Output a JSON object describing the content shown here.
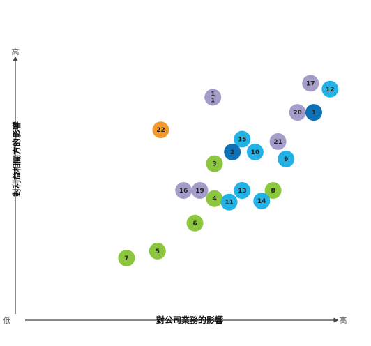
{
  "chart_data": {
    "type": "scatter",
    "title": "",
    "xlabel": "對公司業務的影響",
    "ylabel": "對利益相關方的影響",
    "x_tick_labels": {
      "low": "低",
      "high": "高"
    },
    "y_tick_labels": {
      "low": "低",
      "high": "高"
    },
    "xlim": [
      0,
      10
    ],
    "ylim": [
      0,
      10
    ],
    "grid": false,
    "legend": "none",
    "colors": {
      "purple": "#a59cc9",
      "light_blue": "#22b2e6",
      "dark_blue": "#0f72b7",
      "green": "#8cc63f",
      "orange": "#f39a2f"
    },
    "points": [
      {
        "label": "17",
        "x": 9.0,
        "y": 9.0,
        "color": "purple"
      },
      {
        "label": "12",
        "x": 9.6,
        "y": 8.75,
        "color": "light_blue"
      },
      {
        "label": "1\n1",
        "x": 6.0,
        "y": 8.4,
        "color": "purple"
      },
      {
        "label": "20",
        "x": 8.6,
        "y": 7.75,
        "color": "purple"
      },
      {
        "label": "1",
        "x": 9.1,
        "y": 7.75,
        "color": "dark_blue"
      },
      {
        "label": "22",
        "x": 4.4,
        "y": 7.0,
        "color": "orange"
      },
      {
        "label": "15",
        "x": 6.9,
        "y": 6.6,
        "color": "light_blue"
      },
      {
        "label": "21",
        "x": 8.0,
        "y": 6.5,
        "color": "purple"
      },
      {
        "label": "2",
        "x": 6.6,
        "y": 6.05,
        "color": "dark_blue"
      },
      {
        "label": "10",
        "x": 7.3,
        "y": 6.05,
        "color": "light_blue"
      },
      {
        "label": "9",
        "x": 8.25,
        "y": 5.75,
        "color": "light_blue"
      },
      {
        "label": "3",
        "x": 6.05,
        "y": 5.55,
        "color": "green"
      },
      {
        "label": "16",
        "x": 5.1,
        "y": 4.4,
        "color": "purple"
      },
      {
        "label": "19",
        "x": 5.6,
        "y": 4.4,
        "color": "purple"
      },
      {
        "label": "13",
        "x": 6.9,
        "y": 4.4,
        "color": "light_blue"
      },
      {
        "label": "8",
        "x": 7.85,
        "y": 4.4,
        "color": "green"
      },
      {
        "label": "4",
        "x": 6.05,
        "y": 4.05,
        "color": "green"
      },
      {
        "label": "11",
        "x": 6.5,
        "y": 3.9,
        "color": "light_blue"
      },
      {
        "label": "14",
        "x": 7.5,
        "y": 3.95,
        "color": "light_blue"
      },
      {
        "label": "6",
        "x": 5.45,
        "y": 3.0,
        "color": "green"
      },
      {
        "label": "5",
        "x": 4.3,
        "y": 1.8,
        "color": "green"
      },
      {
        "label": "7",
        "x": 3.35,
        "y": 1.5,
        "color": "green"
      }
    ]
  }
}
